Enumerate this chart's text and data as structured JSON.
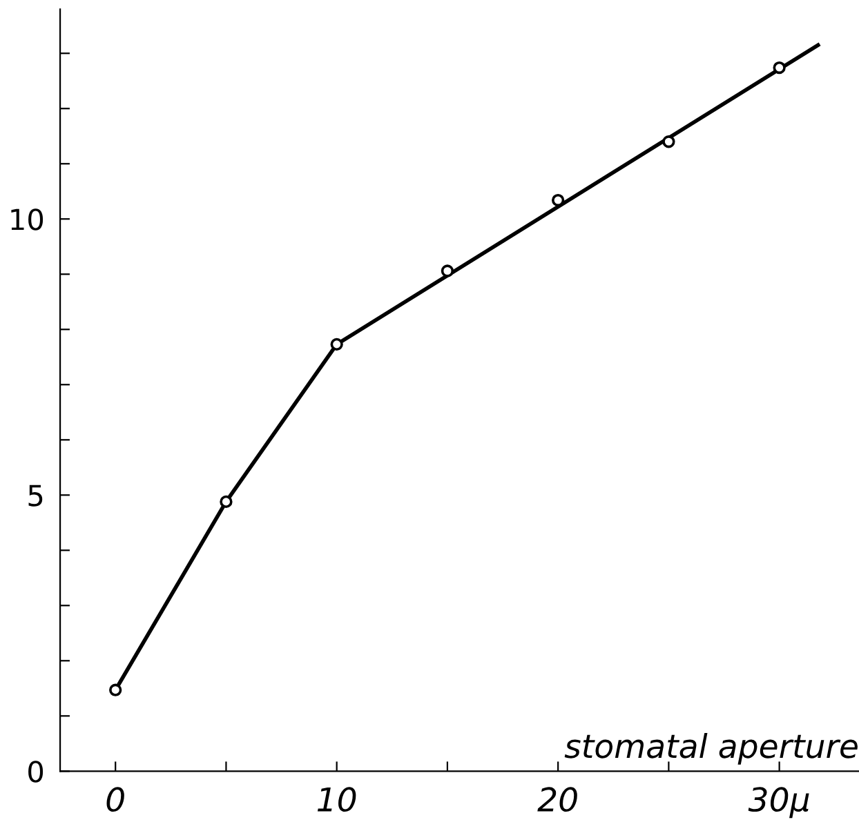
{
  "chart_data": {
    "type": "scatter",
    "xlabel": "stomatal aperture",
    "xlim": [
      -2.5,
      33.6
    ],
    "ylim": [
      0,
      13.8
    ],
    "xticks": [
      0,
      {
        "value": 5,
        "label": null
      },
      10,
      {
        "value": 15,
        "label": null
      },
      20,
      {
        "value": 25,
        "label": null
      },
      {
        "value": 30,
        "label": "30μ"
      }
    ],
    "yticks": [
      0,
      {
        "value": 1,
        "label": null
      },
      {
        "value": 2,
        "label": null
      },
      {
        "value": 3,
        "label": null
      },
      {
        "value": 4,
        "label": null
      },
      5,
      {
        "value": 6,
        "label": null
      },
      {
        "value": 7,
        "label": null
      },
      {
        "value": 8,
        "label": null
      },
      {
        "value": 9,
        "label": null
      },
      10,
      {
        "value": 11,
        "label": null
      },
      {
        "value": 12,
        "label": null
      },
      {
        "value": 13,
        "label": null
      }
    ],
    "grid": false,
    "legend": false,
    "series": [
      {
        "type": "line",
        "color": "#000000",
        "marker": "none",
        "line_style": "solid",
        "x": [
          0,
          5,
          10,
          31.75
        ],
        "values": [
          1.47,
          4.88,
          7.73,
          13.15
        ]
      },
      {
        "color": "#000000",
        "marker": "circle",
        "x": [
          0,
          5,
          10,
          15,
          20,
          25,
          30
        ],
        "values": [
          1.47,
          4.88,
          7.73,
          9.06,
          10.34,
          11.4,
          12.74
        ]
      }
    ]
  }
}
